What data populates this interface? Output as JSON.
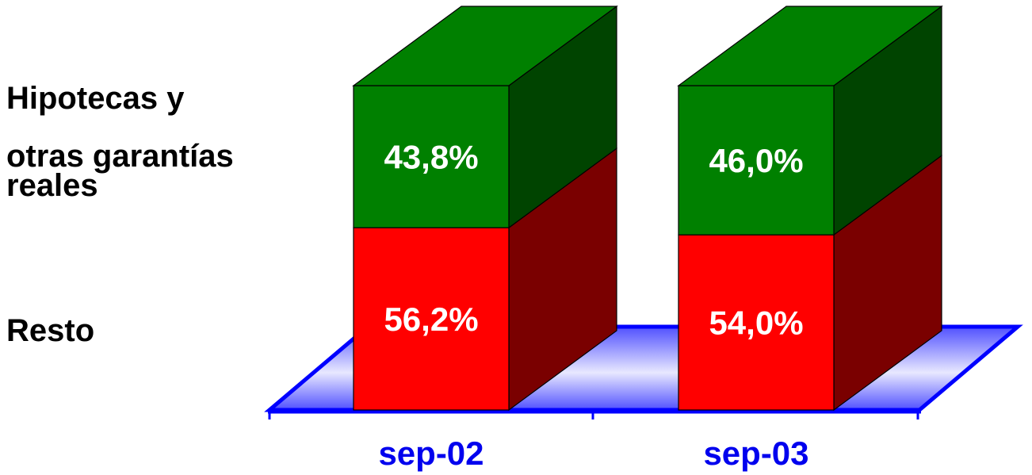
{
  "chart_data": {
    "type": "bar",
    "stacked": true,
    "percent": true,
    "three_d": true,
    "categories": [
      "sep-02",
      "sep-03"
    ],
    "series": [
      {
        "name": "Resto",
        "values": [
          56.2,
          54.0
        ],
        "labels": [
          "56,2%",
          "54,0%"
        ],
        "color": "#ff0000",
        "side_color": "#7a0000"
      },
      {
        "name": "Hipotecas y otras garantías reales",
        "values": [
          43.8,
          46.0
        ],
        "labels": [
          "43,8%",
          "46,0%"
        ],
        "color": "#008000",
        "side_color": "#004400"
      }
    ],
    "ylim": [
      0,
      100
    ],
    "grid": false,
    "legend_position": "left",
    "axis_color": "#0000ff",
    "category_label_color": "#0000ee"
  },
  "legend": {
    "top_line1": "Hipotecas y",
    "top_line2": "otras garantías",
    "top_line3": "reales",
    "bottom": "Resto"
  }
}
